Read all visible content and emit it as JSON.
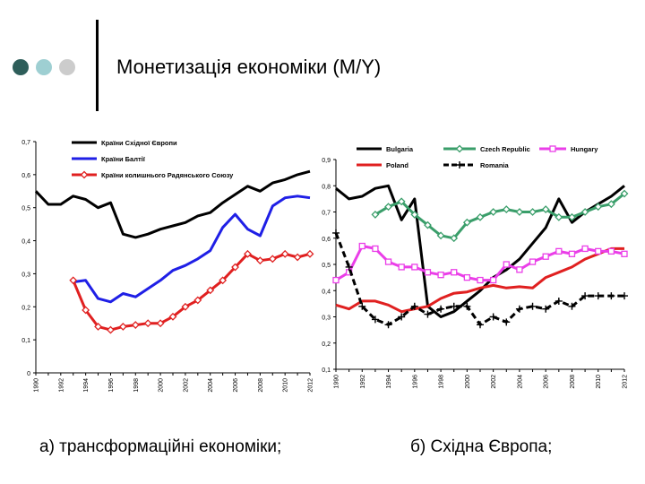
{
  "slide": {
    "title": "Монетизація економіки (M/Y)",
    "caption_left": "а) трансформаційні економіки;",
    "caption_right": "б) Східна Європа;",
    "bullet_colors": [
      "#2e5e5a",
      "#9ecfd2",
      "#cccccc"
    ]
  },
  "chart_data": [
    {
      "type": "line",
      "title": "",
      "xlabel": "",
      "ylabel": "",
      "xlim": [
        1990,
        2012
      ],
      "ylim": [
        0,
        0.7
      ],
      "yticks": [
        "0",
        "0,1",
        "0,2",
        "0,3",
        "0,4",
        "0,5",
        "0,6",
        "0,7"
      ],
      "xticks": [
        "1990",
        "1992",
        "1994",
        "1996",
        "1998",
        "2000",
        "2002",
        "2004",
        "2006",
        "2008",
        "2010",
        "2012"
      ],
      "series": [
        {
          "name": "Країни Східної Європи",
          "color": "#000000",
          "marker": "none",
          "x": [
            1990,
            1991,
            1992,
            1993,
            1994,
            1995,
            1996,
            1997,
            1998,
            1999,
            2000,
            2001,
            2002,
            2003,
            2004,
            2005,
            2006,
            2007,
            2008,
            2009,
            2010,
            2011,
            2012
          ],
          "values": [
            0.55,
            0.51,
            0.51,
            0.535,
            0.525,
            0.5,
            0.515,
            0.42,
            0.41,
            0.42,
            0.435,
            0.445,
            0.455,
            0.475,
            0.485,
            0.515,
            0.54,
            0.565,
            0.55,
            0.575,
            0.585,
            0.6,
            0.61
          ]
        },
        {
          "name": "Країни Балтії",
          "color": "#1f1fe6",
          "marker": "none",
          "x": [
            1993,
            1994,
            1995,
            1996,
            1997,
            1998,
            1999,
            2000,
            2001,
            2002,
            2003,
            2004,
            2005,
            2006,
            2007,
            2008,
            2009,
            2010,
            2011,
            2012
          ],
          "values": [
            0.275,
            0.28,
            0.225,
            0.215,
            0.24,
            0.23,
            0.255,
            0.28,
            0.31,
            0.325,
            0.345,
            0.37,
            0.44,
            0.48,
            0.435,
            0.415,
            0.505,
            0.53,
            0.535,
            0.53
          ]
        },
        {
          "name": "Країни колишнього Радянського Союзу",
          "color": "#e02020",
          "marker": "diamond",
          "x": [
            1993,
            1994,
            1995,
            1996,
            1997,
            1998,
            1999,
            2000,
            2001,
            2002,
            2003,
            2004,
            2005,
            2006,
            2007,
            2008,
            2009,
            2010,
            2011,
            2012
          ],
          "values": [
            0.28,
            0.19,
            0.14,
            0.13,
            0.14,
            0.145,
            0.15,
            0.15,
            0.17,
            0.2,
            0.22,
            0.25,
            0.28,
            0.32,
            0.36,
            0.34,
            0.345,
            0.36,
            0.35,
            0.36
          ]
        }
      ]
    },
    {
      "type": "line",
      "title": "",
      "xlabel": "",
      "ylabel": "",
      "xlim": [
        1990,
        2012
      ],
      "ylim": [
        0.1,
        0.9
      ],
      "yticks": [
        "0,1",
        "0,2",
        "0,3",
        "0,4",
        "0,5",
        "0,6",
        "0,7",
        "0,8",
        "0,9"
      ],
      "xticks": [
        "1990",
        "1992",
        "1994",
        "1996",
        "1998",
        "2000",
        "2002",
        "2004",
        "2006",
        "2008",
        "2010",
        "2012"
      ],
      "series": [
        {
          "name": "Bulgaria",
          "color": "#000000",
          "marker": "none",
          "x": [
            1990,
            1991,
            1992,
            1993,
            1994,
            1995,
            1996,
            1997,
            1998,
            1999,
            2000,
            2001,
            2002,
            2003,
            2004,
            2005,
            2006,
            2007,
            2008,
            2009,
            2010,
            2011,
            2012
          ],
          "values": [
            0.79,
            0.75,
            0.76,
            0.79,
            0.8,
            0.67,
            0.75,
            0.34,
            0.3,
            0.32,
            0.36,
            0.4,
            0.45,
            0.48,
            0.52,
            0.58,
            0.64,
            0.75,
            0.66,
            0.7,
            0.73,
            0.76,
            0.8
          ]
        },
        {
          "name": "Poland",
          "color": "#e02020",
          "marker": "none",
          "x": [
            1990,
            1991,
            1992,
            1993,
            1994,
            1995,
            1996,
            1997,
            1998,
            1999,
            2000,
            2001,
            2002,
            2003,
            2004,
            2005,
            2006,
            2007,
            2008,
            2009,
            2010,
            2011,
            2012
          ],
          "values": [
            0.345,
            0.33,
            0.36,
            0.36,
            0.345,
            0.32,
            0.33,
            0.34,
            0.37,
            0.39,
            0.395,
            0.41,
            0.42,
            0.41,
            0.415,
            0.41,
            0.45,
            0.47,
            0.49,
            0.52,
            0.54,
            0.56,
            0.56
          ]
        },
        {
          "name": "Czech Republic",
          "color": "#3a9e6a",
          "marker": "diamond",
          "x": [
            1993,
            1994,
            1995,
            1996,
            1997,
            1998,
            1999,
            2000,
            2001,
            2002,
            2003,
            2004,
            2005,
            2006,
            2007,
            2008,
            2009,
            2010,
            2011,
            2012
          ],
          "values": [
            0.69,
            0.72,
            0.74,
            0.69,
            0.65,
            0.61,
            0.6,
            0.66,
            0.68,
            0.7,
            0.71,
            0.7,
            0.7,
            0.71,
            0.68,
            0.68,
            0.7,
            0.72,
            0.73,
            0.77
          ]
        },
        {
          "name": "Hungary",
          "color": "#ea3ee8",
          "marker": "square",
          "x": [
            1990,
            1991,
            1992,
            1993,
            1994,
            1995,
            1996,
            1997,
            1998,
            1999,
            2000,
            2001,
            2002,
            2003,
            2004,
            2005,
            2006,
            2007,
            2008,
            2009,
            2010,
            2011,
            2012
          ],
          "values": [
            0.44,
            0.47,
            0.57,
            0.56,
            0.51,
            0.49,
            0.49,
            0.47,
            0.46,
            0.47,
            0.45,
            0.44,
            0.44,
            0.5,
            0.48,
            0.51,
            0.53,
            0.55,
            0.54,
            0.56,
            0.55,
            0.55,
            0.54
          ]
        },
        {
          "name": "Romania",
          "color": "#000000",
          "marker": "plus",
          "dashed": true,
          "x": [
            1990,
            1991,
            1992,
            1993,
            1994,
            1995,
            1996,
            1997,
            1998,
            1999,
            2000,
            2001,
            2002,
            2003,
            2004,
            2005,
            2006,
            2007,
            2008,
            2009,
            2010,
            2011,
            2012
          ],
          "values": [
            0.62,
            0.49,
            0.34,
            0.29,
            0.27,
            0.3,
            0.34,
            0.31,
            0.33,
            0.34,
            0.34,
            0.27,
            0.3,
            0.28,
            0.33,
            0.34,
            0.33,
            0.36,
            0.34,
            0.38,
            0.38,
            0.38,
            0.38
          ]
        }
      ]
    }
  ]
}
